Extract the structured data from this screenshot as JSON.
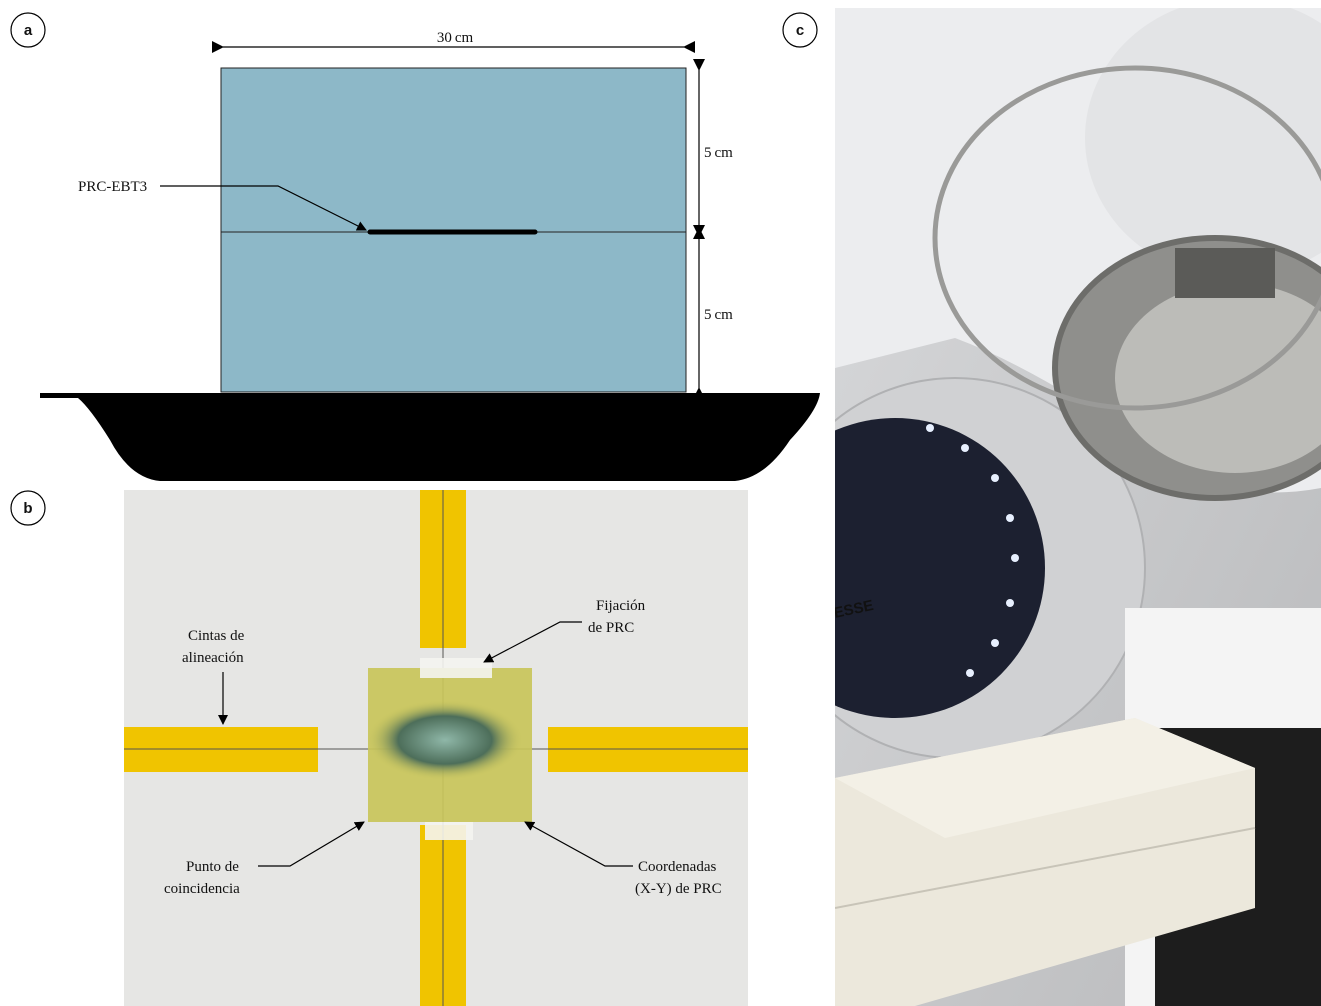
{
  "panel_a": {
    "label": "a",
    "width_label": "30 cm",
    "upper_label": "5 cm",
    "lower_label": "5 cm",
    "film_label": "PRC-EBT3"
  },
  "panel_b": {
    "label": "b",
    "tape_label": [
      "Cintas de",
      "alineación"
    ],
    "fixation_label": [
      "Fijación",
      "de PRC"
    ],
    "point_label": [
      "Punto de",
      "coincidencia"
    ],
    "coords_label": [
      "Coordenadas",
      "(X-Y) de PRC"
    ]
  },
  "panel_c": {
    "label": "c",
    "machine_text": "ESSE"
  }
}
